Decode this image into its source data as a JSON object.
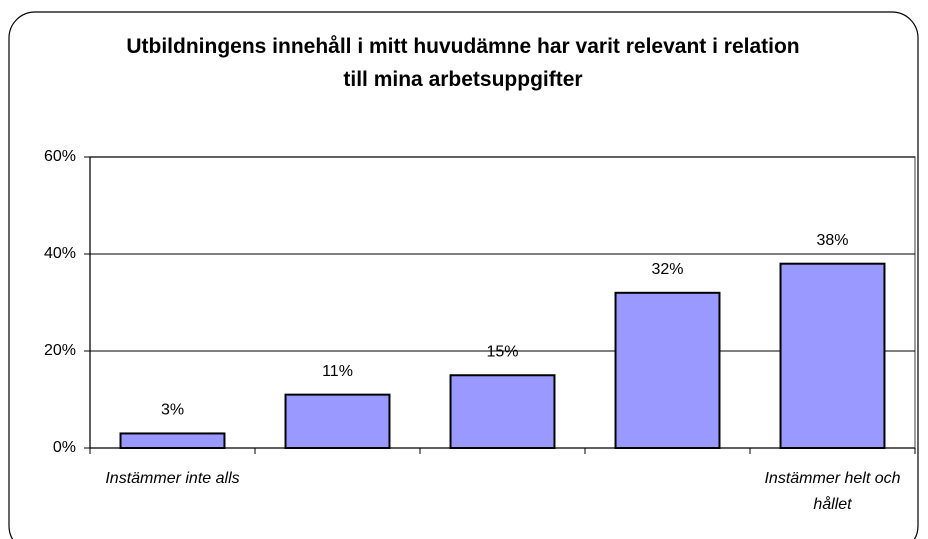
{
  "chart_data": {
    "type": "bar",
    "title": "Utbildningens innehåll i mitt huvudämne har varit relevant i relation till mina arbetsuppgifter",
    "categories": [
      "Instämmer inte alls",
      null,
      null,
      null,
      "Instämmer helt och hållet"
    ],
    "values": [
      3,
      11,
      15,
      32,
      38
    ],
    "value_labels": [
      "3%",
      "11%",
      "15%",
      "32%",
      "38%"
    ],
    "color": "#9999ff",
    "ylim": [
      0,
      60
    ],
    "yticks": [
      {
        "value": 0,
        "label": "0%"
      },
      {
        "value": 20,
        "label": "20%"
      },
      {
        "value": 40,
        "label": "40%"
      },
      {
        "value": 60,
        "label": "60%"
      }
    ],
    "grid": true
  }
}
